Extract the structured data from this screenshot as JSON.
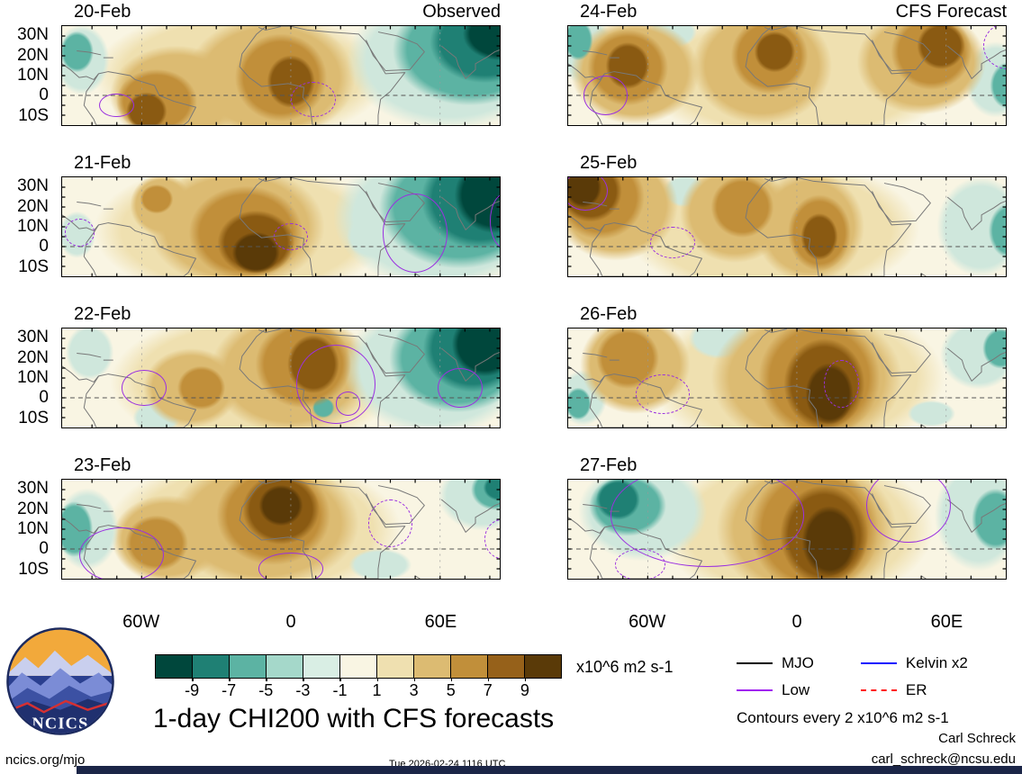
{
  "palette": {
    "t4": "#00473c",
    "t3": "#1f8074",
    "t2": "#5cb3a3",
    "t1": "#cfe7dc",
    "b1": "#efe0b0",
    "b2": "#dcbb72",
    "b3": "#c18f3a",
    "b4": "#8a5a12",
    "b5": "#5a3a08",
    "base": "#f9f5e3",
    "wave": "#9b30e0"
  },
  "logo_text": "NCICS",
  "footer": {
    "site": "ncics.org/mjo",
    "timestamp": "Tue 2026-02-24 1116 UTC",
    "author": "Carl Schreck",
    "email": "carl_schreck@ncsu.edu",
    "contours_note": "Contours every 2 x10^6 m2 s-1"
  },
  "chart_data": {
    "type": "heatmap",
    "title": "1-day CHI200 with CFS forecasts",
    "units": "x10^6 m2 s-1",
    "x_domain": [
      -92,
      84
    ],
    "y_domain": [
      -15,
      35
    ],
    "x_ticks": [
      {
        "lon": -60,
        "label": "60W"
      },
      {
        "lon": 0,
        "label": "0"
      },
      {
        "lon": 60,
        "label": "60E"
      }
    ],
    "y_ticks": [
      {
        "lat": 30,
        "label": "30N"
      },
      {
        "lat": 20,
        "label": "20N"
      },
      {
        "lat": 10,
        "label": "10N"
      },
      {
        "lat": 0,
        "label": "0"
      },
      {
        "lat": -10,
        "label": "10S"
      }
    ],
    "colorbar": {
      "levels": [
        -9,
        -7,
        -5,
        -3,
        -1,
        1,
        3,
        5,
        7,
        9
      ],
      "colors": [
        "#00473c",
        "#1f8074",
        "#5cb3a3",
        "#a5d8ca",
        "#d9eee4",
        "#f9f5e3",
        "#efe0b0",
        "#dcbb72",
        "#c18f3a",
        "#96611a",
        "#5a3a08"
      ]
    },
    "legend": [
      {
        "label": "MJO",
        "color": "#000000",
        "dashed": false
      },
      {
        "label": "Low",
        "color": "#a020f0",
        "dashed": false
      },
      {
        "label": "Kelvin x2",
        "color": "#1010ff",
        "dashed": false
      },
      {
        "label": "ER",
        "color": "#ff1010",
        "dashed": true
      }
    ],
    "anomaly_format": "[lon_deg, lat_deg, radius_lon_deg, radius_lat_deg, value_x10^6_m2_s-1]",
    "wave_format": "[lon_deg, lat_deg, radius_lon_deg, radius_lat_deg, dashed_0_or_1]",
    "panels": [
      {
        "date": "20-Feb",
        "corner": "Observed",
        "anomalies": [
          [
            84,
            31,
            20,
            18,
            -9
          ],
          [
            78,
            27,
            30,
            28,
            -7
          ],
          [
            72,
            23,
            42,
            38,
            -5
          ],
          [
            64,
            18,
            56,
            48,
            -3
          ],
          [
            0,
            7,
            13,
            18,
            7
          ],
          [
            -4,
            9,
            25,
            30,
            5
          ],
          [
            -8,
            9,
            46,
            42,
            3
          ],
          [
            -58,
            -8,
            11,
            13,
            7
          ],
          [
            -54,
            -3,
            22,
            22,
            5
          ],
          [
            -46,
            0,
            36,
            34,
            3
          ],
          [
            -20,
            10,
            80,
            46,
            1
          ],
          [
            -86,
            22,
            9,
            14,
            -5
          ],
          [
            -84,
            18,
            15,
            24,
            -3
          ]
        ],
        "waves": [
          [
            -70,
            -5,
            7,
            6,
            0
          ],
          [
            9,
            -2,
            9,
            9,
            1
          ]
        ]
      },
      {
        "date": "21-Feb",
        "corner": "",
        "anomalies": [
          [
            82,
            26,
            22,
            26,
            -9
          ],
          [
            76,
            24,
            32,
            34,
            -7
          ],
          [
            68,
            20,
            44,
            42,
            -5
          ],
          [
            60,
            15,
            58,
            50,
            -3
          ],
          [
            32,
            5,
            13,
            15,
            -3
          ],
          [
            -14,
            -3,
            13,
            14,
            9
          ],
          [
            -14,
            2,
            21,
            22,
            7
          ],
          [
            -18,
            7,
            31,
            32,
            5
          ],
          [
            -22,
            10,
            48,
            42,
            3
          ],
          [
            -54,
            24,
            9,
            10,
            5
          ],
          [
            -52,
            21,
            17,
            21,
            3
          ],
          [
            -20,
            8,
            80,
            48,
            1
          ],
          [
            -86,
            6,
            10,
            16,
            -3
          ]
        ],
        "waves": [
          [
            50,
            7,
            13,
            20,
            0
          ],
          [
            86,
            13,
            6,
            14,
            0
          ],
          [
            0,
            5,
            7,
            7,
            1
          ],
          [
            -85,
            7,
            6,
            7,
            1
          ]
        ]
      },
      {
        "date": "22-Feb",
        "corner": "",
        "anomalies": [
          [
            78,
            27,
            18,
            22,
            -9
          ],
          [
            73,
            25,
            27,
            30,
            -7
          ],
          [
            67,
            20,
            37,
            37,
            -5
          ],
          [
            58,
            15,
            50,
            46,
            -3
          ],
          [
            9,
            17,
            14,
            20,
            7
          ],
          [
            5,
            17,
            26,
            30,
            5
          ],
          [
            0,
            13,
            44,
            42,
            3
          ],
          [
            -36,
            5,
            13,
            15,
            5
          ],
          [
            -40,
            5,
            26,
            27,
            3
          ],
          [
            -15,
            8,
            78,
            48,
            1
          ],
          [
            -81,
            23,
            13,
            19,
            -3
          ],
          [
            13,
            -5,
            6,
            7,
            -5
          ],
          [
            13,
            -3,
            12,
            12,
            -3
          ],
          [
            -54,
            -10,
            13,
            11,
            -3
          ]
        ],
        "waves": [
          [
            18,
            7,
            16,
            20,
            0
          ],
          [
            23,
            -3,
            5,
            6,
            0
          ],
          [
            68,
            5,
            9,
            10,
            0
          ],
          [
            -59,
            5,
            9,
            9,
            0
          ]
        ]
      },
      {
        "date": "23-Feb",
        "corner": "",
        "anomalies": [
          [
            -4,
            22,
            12,
            14,
            9
          ],
          [
            -4,
            20,
            21,
            24,
            7
          ],
          [
            -7,
            17,
            31,
            34,
            5
          ],
          [
            -11,
            13,
            52,
            44,
            3
          ],
          [
            -15,
            10,
            80,
            50,
            1
          ],
          [
            84,
            31,
            9,
            9,
            -7
          ],
          [
            82,
            30,
            13,
            14,
            -5
          ],
          [
            77,
            27,
            24,
            24,
            -3
          ],
          [
            -87,
            10,
            10,
            19,
            -5
          ],
          [
            -82,
            10,
            17,
            28,
            -3
          ],
          [
            36,
            -8,
            17,
            11,
            -3
          ],
          [
            -54,
            3,
            17,
            19,
            5
          ],
          [
            -50,
            5,
            30,
            30,
            3
          ]
        ],
        "waves": [
          [
            -68,
            -3,
            17,
            14,
            0
          ],
          [
            0,
            -10,
            13,
            8,
            0
          ],
          [
            40,
            13,
            9,
            12,
            1
          ],
          [
            85,
            5,
            7,
            10,
            1
          ]
        ]
      },
      {
        "date": "24-Feb",
        "corner": "CFS Forecast",
        "anomalies": [
          [
            -68,
            15,
            12,
            16,
            7
          ],
          [
            -68,
            14,
            22,
            26,
            5
          ],
          [
            -65,
            12,
            35,
            36,
            3
          ],
          [
            -9,
            22,
            11,
            14,
            7
          ],
          [
            -11,
            20,
            21,
            26,
            5
          ],
          [
            -14,
            15,
            38,
            40,
            3
          ],
          [
            58,
            25,
            13,
            16,
            7
          ],
          [
            54,
            22,
            22,
            26,
            5
          ],
          [
            50,
            17,
            35,
            36,
            3
          ],
          [
            0,
            10,
            86,
            48,
            1
          ],
          [
            -88,
            28,
            8,
            14,
            -5
          ],
          [
            -85,
            23,
            15,
            24,
            -3
          ],
          [
            -50,
            32,
            13,
            11,
            -3
          ],
          [
            85,
            5,
            10,
            16,
            -5
          ],
          [
            80,
            8,
            17,
            26,
            -3
          ]
        ],
        "waves": [
          [
            -77,
            0,
            9,
            10,
            0
          ],
          [
            85,
            25,
            10,
            12,
            1
          ]
        ]
      },
      {
        "date": "25-Feb",
        "corner": "",
        "anomalies": [
          [
            -86,
            30,
            10,
            14,
            9
          ],
          [
            -83,
            28,
            17,
            21,
            7
          ],
          [
            -79,
            25,
            24,
            29,
            5
          ],
          [
            -73,
            21,
            34,
            38,
            3
          ],
          [
            -22,
            20,
            17,
            21,
            5
          ],
          [
            -25,
            17,
            30,
            34,
            3
          ],
          [
            9,
            5,
            10,
            16,
            7
          ],
          [
            9,
            7,
            17,
            26,
            5
          ],
          [
            5,
            10,
            30,
            38,
            3
          ],
          [
            -10,
            9,
            80,
            48,
            1
          ],
          [
            86,
            8,
            12,
            19,
            -5
          ],
          [
            74,
            10,
            24,
            34,
            -3
          ],
          [
            -45,
            28,
            12,
            11,
            -3
          ]
        ],
        "waves": [
          [
            -85,
            28,
            9,
            10,
            0
          ],
          [
            -50,
            2,
            9,
            8,
            1
          ]
        ]
      },
      {
        "date": "26-Feb",
        "corner": "",
        "anomalies": [
          [
            13,
            2,
            13,
            21,
            9
          ],
          [
            11,
            7,
            22,
            31,
            7
          ],
          [
            9,
            10,
            33,
            41,
            5
          ],
          [
            4,
            10,
            52,
            48,
            3
          ],
          [
            0,
            10,
            80,
            54,
            1
          ],
          [
            -68,
            20,
            17,
            21,
            5
          ],
          [
            -65,
            17,
            30,
            34,
            3
          ],
          [
            -88,
            -3,
            7,
            11,
            -5
          ],
          [
            -86,
            0,
            13,
            19,
            -3
          ],
          [
            -31,
            30,
            17,
            14,
            -3
          ],
          [
            82,
            25,
            10,
            14,
            -5
          ],
          [
            73,
            22,
            21,
            24,
            -3
          ],
          [
            54,
            -8,
            13,
            9,
            -3
          ]
        ],
        "waves": [
          [
            -54,
            2,
            11,
            10,
            1
          ],
          [
            18,
            7,
            7,
            12,
            1
          ]
        ]
      },
      {
        "date": "27-Feb",
        "corner": "",
        "anomalies": [
          [
            13,
            4,
            15,
            24,
            9
          ],
          [
            11,
            7,
            24,
            34,
            7
          ],
          [
            7,
            10,
            35,
            44,
            5
          ],
          [
            4,
            10,
            49,
            49,
            3
          ],
          [
            0,
            10,
            74,
            54,
            1
          ],
          [
            -72,
            25,
            12,
            14,
            -7
          ],
          [
            -68,
            22,
            21,
            21,
            -5
          ],
          [
            -62,
            19,
            35,
            34,
            -3
          ],
          [
            80,
            15,
            13,
            21,
            -5
          ],
          [
            73,
            17,
            24,
            38,
            -3
          ]
        ],
        "waves": [
          [
            -36,
            17,
            39,
            26,
            0
          ],
          [
            45,
            22,
            17,
            19,
            0
          ],
          [
            -63,
            -8,
            10,
            8,
            1
          ]
        ]
      }
    ]
  }
}
